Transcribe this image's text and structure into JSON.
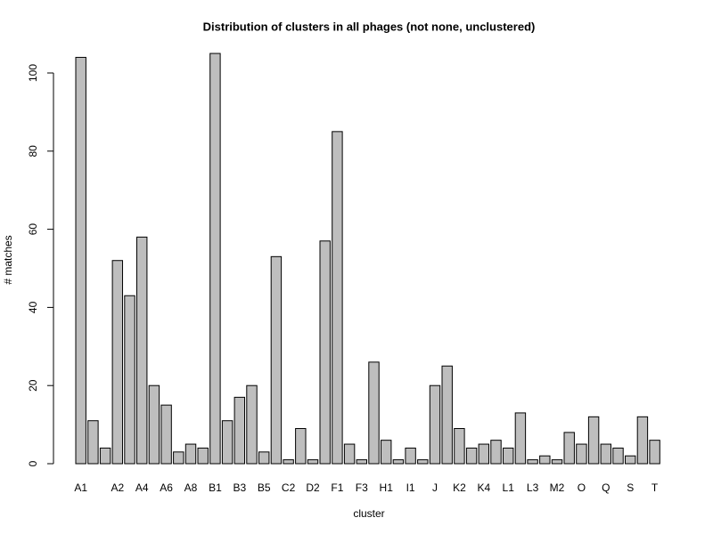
{
  "chart_data": {
    "type": "bar",
    "title": "Distribution of clusters in all phages (not none, unclustered)",
    "x_label": "cluster",
    "y_label": "# matches",
    "categories": [
      "A1",
      null,
      null,
      "A2",
      null,
      "A4",
      null,
      "A6",
      null,
      "A8",
      null,
      "B1",
      null,
      "B3",
      null,
      "B5",
      null,
      "C2",
      null,
      "D2",
      null,
      "F1",
      null,
      "F3",
      null,
      "H1",
      null,
      "I1",
      null,
      "J",
      null,
      "K2",
      null,
      "K4",
      null,
      "L1",
      null,
      "L3",
      null,
      "M2",
      null,
      "O",
      null,
      "Q",
      null,
      "S",
      null,
      "T"
    ],
    "values": [
      104,
      11,
      4,
      52,
      43,
      58,
      20,
      15,
      3,
      5,
      4,
      105,
      11,
      17,
      20,
      3,
      53,
      1,
      9,
      1,
      57,
      85,
      5,
      1,
      26,
      6,
      1,
      4,
      1,
      20,
      25,
      9,
      4,
      5,
      6,
      4,
      13,
      1,
      2,
      1,
      8,
      5,
      12,
      5,
      4,
      2,
      12,
      6
    ],
    "color": "#bebebe",
    "ylim": [
      0,
      100
    ],
    "yticks": [
      0,
      20,
      40,
      60,
      80,
      100
    ]
  }
}
